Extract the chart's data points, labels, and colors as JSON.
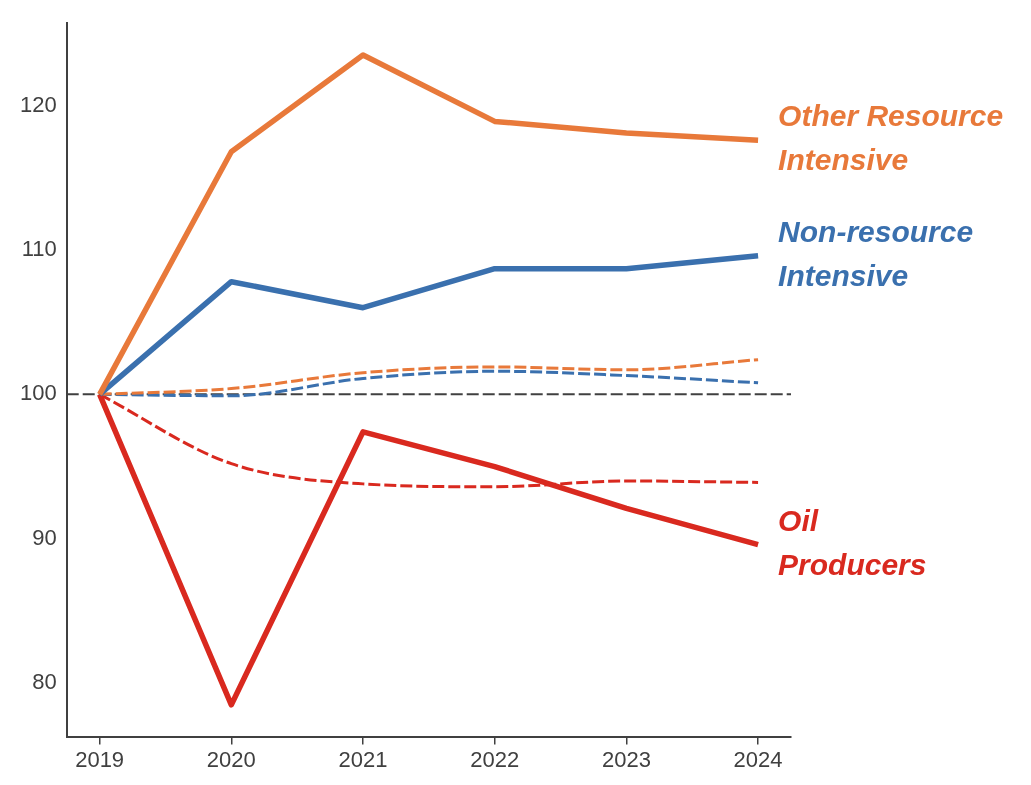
{
  "chart_data": {
    "type": "line",
    "x": [
      2019,
      2020,
      2021,
      2022,
      2023,
      2024
    ],
    "xlim": [
      2018.75,
      2024.25
    ],
    "xticks": [
      2019,
      2020,
      2021,
      2022,
      2023,
      2024
    ],
    "ylim": [
      76.3,
      125.7
    ],
    "yticks": [
      80,
      90,
      100,
      110,
      120
    ],
    "grid": false,
    "legend": false,
    "marker": "none",
    "series": [
      {
        "name": "Other Resource Intensive",
        "color": "#e8793a",
        "line_style": "solid",
        "values": [
          100,
          116.8,
          123.5,
          118.9,
          118.1,
          117.6
        ]
      },
      {
        "name": "Non-resource Intensive",
        "color": "#3a70ae",
        "line_style": "solid",
        "values": [
          100,
          107.8,
          106.0,
          108.7,
          108.7,
          109.6
        ]
      },
      {
        "name": "Oil Producers",
        "color": "#d9291f",
        "line_style": "solid",
        "values": [
          100,
          78.5,
          97.4,
          95.0,
          92.1,
          89.6
        ]
      },
      {
        "color": "#e8793a",
        "line_style": "dashed",
        "values": [
          100,
          100.4,
          101.5,
          101.9,
          101.7,
          102.4
        ]
      },
      {
        "color": "#3a70ae",
        "line_style": "dashed",
        "values": [
          100,
          99.9,
          101.1,
          101.6,
          101.3,
          100.8
        ]
      },
      {
        "color": "#d9291f",
        "line_style": "dashed",
        "values": [
          100,
          95.2,
          93.8,
          93.6,
          94.0,
          93.9
        ]
      }
    ],
    "ref_lines": [
      {
        "axis": "y",
        "value": 100,
        "color": "#404040",
        "line_style": "dashed"
      }
    ]
  }
}
